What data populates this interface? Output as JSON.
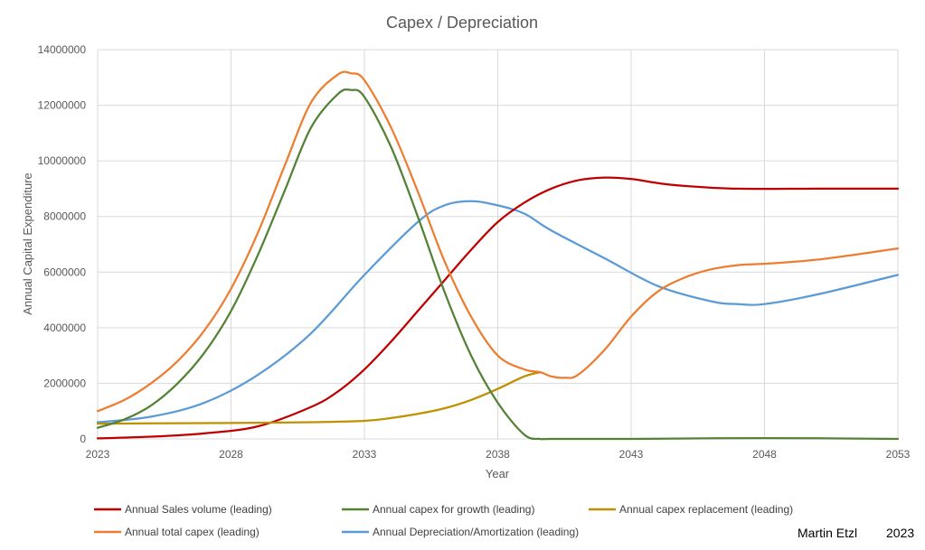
{
  "chart_data": {
    "type": "line",
    "title": "Capex / Depreciation",
    "xlabel": "Year",
    "ylabel": "Annual Capital Expenditure",
    "xlim": [
      2023,
      2053
    ],
    "ylim": [
      0,
      14000000
    ],
    "grid": true,
    "legend_position": "bottom",
    "x_ticks": [
      2023,
      2028,
      2033,
      2038,
      2043,
      2048,
      2053
    ],
    "x_tick_labels": [
      "2023",
      "2028",
      "2033",
      "2038",
      "2043",
      "2048",
      "2053"
    ],
    "y_ticks": [
      0,
      2000000,
      4000000,
      6000000,
      8000000,
      10000000,
      12000000,
      14000000
    ],
    "y_tick_labels": [
      "0",
      "2000000",
      "4000000",
      "6000000",
      "8000000",
      "10000000",
      "12000000",
      "14000000"
    ],
    "series": [
      {
        "name": "Annual Sales volume (leading)",
        "color": "#c00000",
        "x": [
          2023,
          2025,
          2027,
          2029,
          2031,
          2032,
          2033,
          2034,
          2035,
          2036,
          2037,
          2038,
          2039,
          2040,
          2041,
          2042,
          2043,
          2044,
          2045,
          2047,
          2050,
          2053
        ],
        "values": [
          20000,
          80000,
          200000,
          450000,
          1150000,
          1700000,
          2500000,
          3500000,
          4600000,
          5700000,
          6800000,
          7800000,
          8500000,
          9000000,
          9300000,
          9400000,
          9350000,
          9200000,
          9100000,
          9000000,
          9000000,
          9000000
        ]
      },
      {
        "name": "Annual capex for growth (leading)",
        "color": "#548235",
        "x": [
          2023,
          2024,
          2025,
          2026,
          2027,
          2028,
          2029,
          2030,
          2031,
          2032,
          2032.5,
          2033,
          2034,
          2035,
          2036,
          2037,
          2038,
          2039,
          2039.6,
          2040,
          2043,
          2048,
          2053
        ],
        "values": [
          400000,
          700000,
          1200000,
          2000000,
          3100000,
          4600000,
          6600000,
          8900000,
          11200000,
          12400000,
          12550000,
          12300000,
          10500000,
          8000000,
          5300000,
          3000000,
          1300000,
          150000,
          0,
          0,
          0,
          30000,
          0
        ]
      },
      {
        "name": "Annual capex replacement (leading)",
        "color": "#bf9000",
        "x": [
          2023,
          2025,
          2027,
          2029,
          2031,
          2033,
          2034,
          2035,
          2036,
          2037,
          2038,
          2039,
          2039.6
        ],
        "values": [
          550000,
          560000,
          570000,
          580000,
          600000,
          650000,
          750000,
          900000,
          1100000,
          1400000,
          1800000,
          2250000,
          2400000
        ]
      },
      {
        "name": "Annual total capex (leading)",
        "color": "#ed7d31",
        "x": [
          2023,
          2024,
          2025,
          2026,
          2027,
          2028,
          2029,
          2030,
          2031,
          2032,
          2032.5,
          2033,
          2034,
          2035,
          2036,
          2037,
          2038,
          2039,
          2039.6,
          2040,
          2040.5,
          2041,
          2042,
          2043,
          2044,
          2045,
          2046,
          2047,
          2048,
          2050,
          2053
        ],
        "values": [
          1000000,
          1400000,
          2000000,
          2800000,
          3900000,
          5400000,
          7400000,
          9800000,
          12100000,
          13100000,
          13150000,
          12900000,
          11200000,
          8900000,
          6400000,
          4400000,
          3000000,
          2500000,
          2400000,
          2250000,
          2200000,
          2300000,
          3200000,
          4400000,
          5300000,
          5800000,
          6100000,
          6250000,
          6300000,
          6450000,
          6850000
        ]
      },
      {
        "name": "Annual Depreciation/Amortization (leading)",
        "color": "#5b9bd5",
        "x": [
          2023,
          2025,
          2027,
          2029,
          2031,
          2033,
          2035,
          2036,
          2037,
          2038,
          2039,
          2040,
          2042,
          2044,
          2046,
          2047,
          2048,
          2050,
          2053
        ],
        "values": [
          600000,
          800000,
          1300000,
          2300000,
          3800000,
          5900000,
          7800000,
          8400000,
          8550000,
          8400000,
          8100000,
          7500000,
          6500000,
          5500000,
          4950000,
          4850000,
          4850000,
          5200000,
          5900000
        ]
      }
    ]
  },
  "credit": {
    "author": "Martin Etzl",
    "year": "2023"
  }
}
